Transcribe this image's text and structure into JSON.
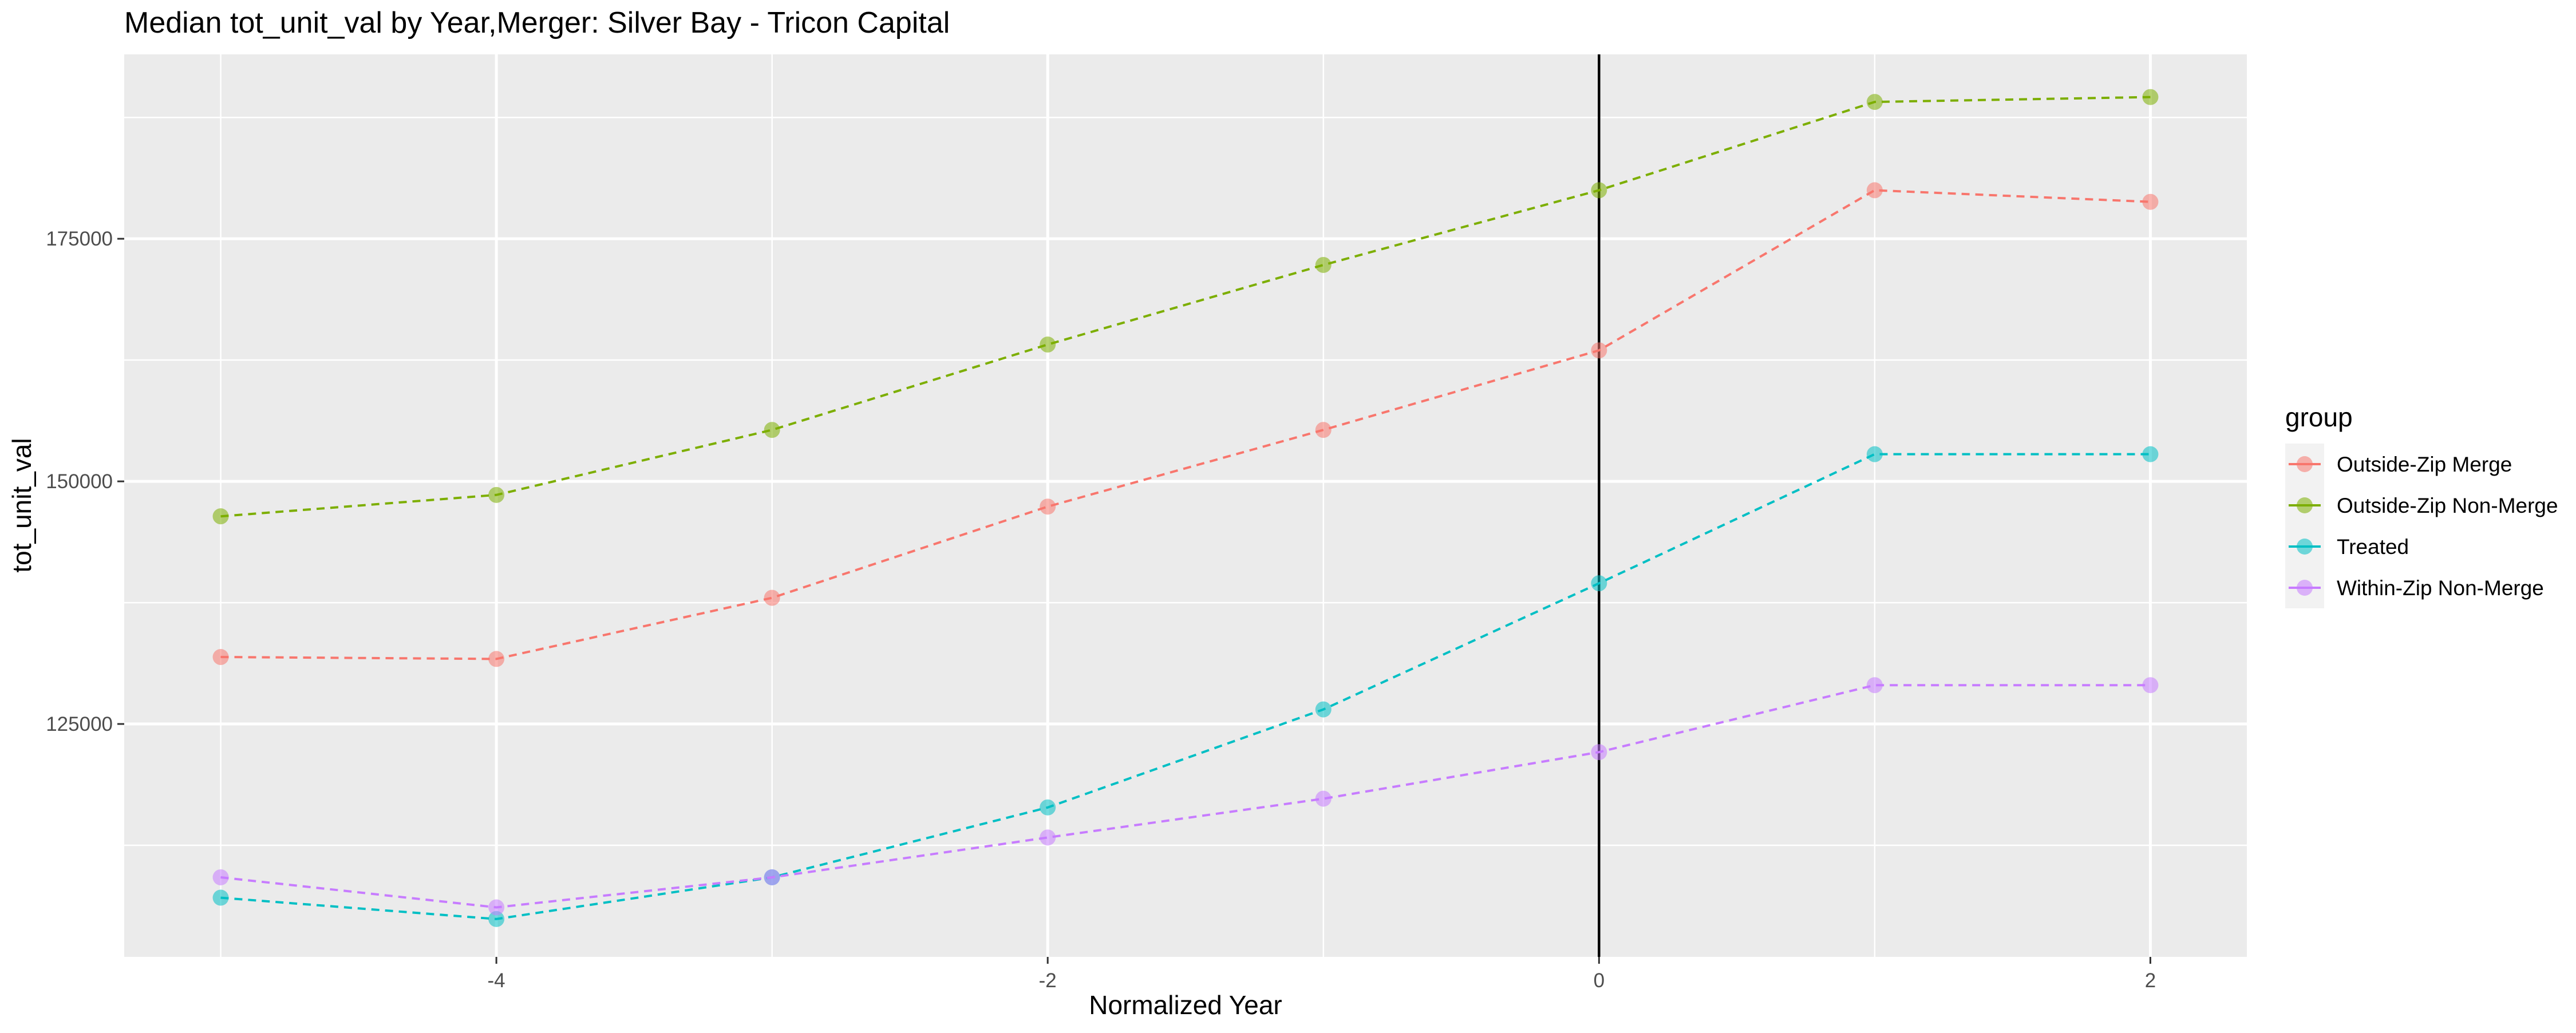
{
  "chart_data": {
    "type": "line",
    "title": "Median tot_unit_val by Year,Merger: Silver Bay - Tricon Capital",
    "xlabel": "Normalized Year",
    "ylabel": "tot_unit_val",
    "x_ticks": [
      -4,
      -2,
      0,
      2
    ],
    "y_ticks": [
      125000,
      150000,
      175000
    ],
    "y_tick_labels": [
      "125000",
      "150000",
      "175000"
    ],
    "xlim": [
      -5.35,
      2.35
    ],
    "ylim": [
      101000,
      194000
    ],
    "vline_x": 0,
    "grid": true,
    "legend_title": "group",
    "legend_position": "right",
    "x": [
      -5,
      -4,
      -3,
      -2,
      -1,
      0,
      1,
      2
    ],
    "series": [
      {
        "name": "Outside-Zip Merge",
        "color": "#F8766D",
        "values": [
          131900,
          131700,
          138000,
          147400,
          155300,
          163500,
          180000,
          178800
        ]
      },
      {
        "name": "Outside-Zip Non-Merge",
        "color": "#7CAE00",
        "values": [
          146400,
          148600,
          155300,
          164100,
          172300,
          180000,
          189100,
          189600
        ]
      },
      {
        "name": "Treated",
        "color": "#00BFC4",
        "values": [
          107100,
          104900,
          109200,
          116400,
          126500,
          139500,
          152800,
          152800
        ]
      },
      {
        "name": "Within-Zip Non-Merge",
        "color": "#C77CFF",
        "values": [
          109200,
          106100,
          109200,
          113300,
          117300,
          122100,
          129000,
          129000
        ]
      }
    ]
  }
}
